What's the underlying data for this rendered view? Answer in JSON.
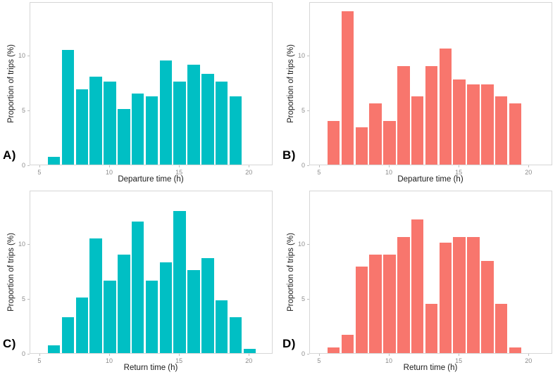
{
  "figure": {
    "description": "Four histograms of trip departure and return times",
    "background": "#ffffff"
  },
  "colors": {
    "teal": "#00BFC4",
    "salmon": "#F8766D",
    "panel_border": "#d6d6d6",
    "tick_color": "#bdbdbd",
    "tick_text": "#8c8c8c",
    "axis_title_text": "#1a1a1a",
    "panel_label_text": "#000000"
  },
  "chart_data": [
    {
      "type": "bar",
      "panel_label": "A)",
      "title": "",
      "xlabel": "Departure time (h)",
      "ylabel": "Proportion of trips (%)",
      "bar_color": "#00BFC4",
      "bin_width": 1,
      "x": [
        6,
        7,
        8,
        9,
        10,
        11,
        12,
        13,
        14,
        15,
        16,
        17,
        18,
        19
      ],
      "values": [
        0.7,
        10.5,
        6.9,
        8.0,
        7.6,
        5.1,
        6.5,
        6.2,
        9.5,
        7.6,
        9.1,
        8.3,
        7.6,
        6.2
      ],
      "xlim": [
        4.3,
        21.7
      ],
      "ylim": [
        0,
        14.9
      ],
      "x_ticks": [
        5,
        10,
        15,
        20
      ],
      "y_ticks": [
        0,
        5,
        10
      ],
      "grid": false,
      "legend": "none"
    },
    {
      "type": "bar",
      "panel_label": "B)",
      "title": "",
      "xlabel": "Departure time (h)",
      "ylabel": "Proportion of trips (%)",
      "bar_color": "#F8766D",
      "bin_width": 1,
      "x": [
        6,
        7,
        8,
        9,
        10,
        11,
        12,
        13,
        14,
        15,
        16,
        17,
        18,
        19
      ],
      "values": [
        4.0,
        14.0,
        3.4,
        5.6,
        4.0,
        9.0,
        6.2,
        9.0,
        10.6,
        7.8,
        7.3,
        7.3,
        6.2,
        5.6
      ],
      "xlim": [
        4.3,
        21.7
      ],
      "ylim": [
        0,
        14.9
      ],
      "x_ticks": [
        5,
        10,
        15,
        20
      ],
      "y_ticks": [
        0,
        5,
        10
      ],
      "grid": false,
      "legend": "none"
    },
    {
      "type": "bar",
      "panel_label": "C)",
      "title": "",
      "xlabel": "Return time (h)",
      "ylabel": "Proportion of trips (%)",
      "bar_color": "#00BFC4",
      "bin_width": 1,
      "x": [
        6,
        7,
        8,
        9,
        10,
        11,
        12,
        13,
        14,
        15,
        16,
        17,
        18,
        19,
        20
      ],
      "values": [
        0.7,
        3.3,
        5.1,
        10.5,
        6.6,
        9.0,
        12.0,
        6.6,
        8.3,
        13.0,
        7.6,
        8.7,
        4.8,
        3.3,
        0.4
      ],
      "xlim": [
        4.3,
        21.7
      ],
      "ylim": [
        0,
        14.9
      ],
      "x_ticks": [
        5,
        10,
        15,
        20
      ],
      "y_ticks": [
        0,
        5,
        10
      ],
      "grid": false,
      "legend": "none"
    },
    {
      "type": "bar",
      "panel_label": "D)",
      "title": "",
      "xlabel": "Return time (h)",
      "ylabel": "Proportion of trips (%)",
      "bar_color": "#F8766D",
      "bin_width": 1,
      "x": [
        6,
        7,
        8,
        9,
        10,
        11,
        12,
        13,
        14,
        15,
        16,
        17,
        18,
        19
      ],
      "values": [
        0.5,
        1.7,
        7.9,
        9.0,
        9.0,
        10.6,
        12.2,
        4.5,
        10.1,
        10.6,
        10.6,
        8.4,
        4.5,
        0.5
      ],
      "xlim": [
        4.3,
        21.7
      ],
      "ylim": [
        0,
        14.9
      ],
      "x_ticks": [
        5,
        10,
        15,
        20
      ],
      "y_ticks": [
        0,
        5,
        10
      ],
      "grid": false,
      "legend": "none"
    }
  ]
}
